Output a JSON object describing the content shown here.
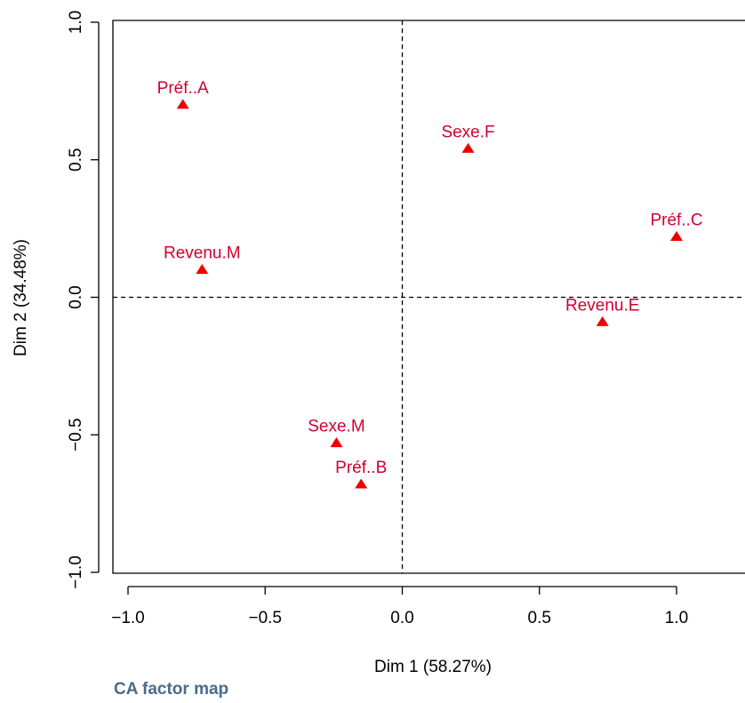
{
  "title": "CA factor map",
  "colors": {
    "points": "#ee0000",
    "labels": "#d00030",
    "title": "#4a6b8a"
  },
  "chart_data": {
    "type": "scatter",
    "title": "CA factor map",
    "xlabel": "Dim 1 (58.27%)",
    "ylabel": "Dim 2 (34.48%)",
    "xlim": [
      -1.0,
      1.0
    ],
    "ylim": [
      -1.0,
      1.0
    ],
    "xticks": [
      -1.0,
      -0.5,
      0.0,
      0.5,
      1.0
    ],
    "xtick_labels": [
      "−1.0",
      "−0.5",
      "0.0",
      "0.5",
      "1.0"
    ],
    "yticks": [
      -1.0,
      -0.5,
      0.0,
      0.5,
      1.0
    ],
    "ytick_labels": [
      "−1.0",
      "−0.5",
      "0.0",
      "0.5",
      "1.0"
    ],
    "reference_lines": {
      "x": 0,
      "y": 0,
      "style": "dashed"
    },
    "grid": false,
    "marker": "triangle",
    "points": [
      {
        "label": "Préf..A",
        "x": -0.8,
        "y": 0.7
      },
      {
        "label": "Revenu.M",
        "x": -0.73,
        "y": 0.1
      },
      {
        "label": "Sexe.F",
        "x": 0.24,
        "y": 0.54
      },
      {
        "label": "Préf..C",
        "x": 1.0,
        "y": 0.22
      },
      {
        "label": "Revenu.E",
        "x": 0.73,
        "y": -0.09
      },
      {
        "label": "Sexe.M",
        "x": -0.24,
        "y": -0.53
      },
      {
        "label": "Préf..B",
        "x": -0.15,
        "y": -0.68
      }
    ]
  }
}
